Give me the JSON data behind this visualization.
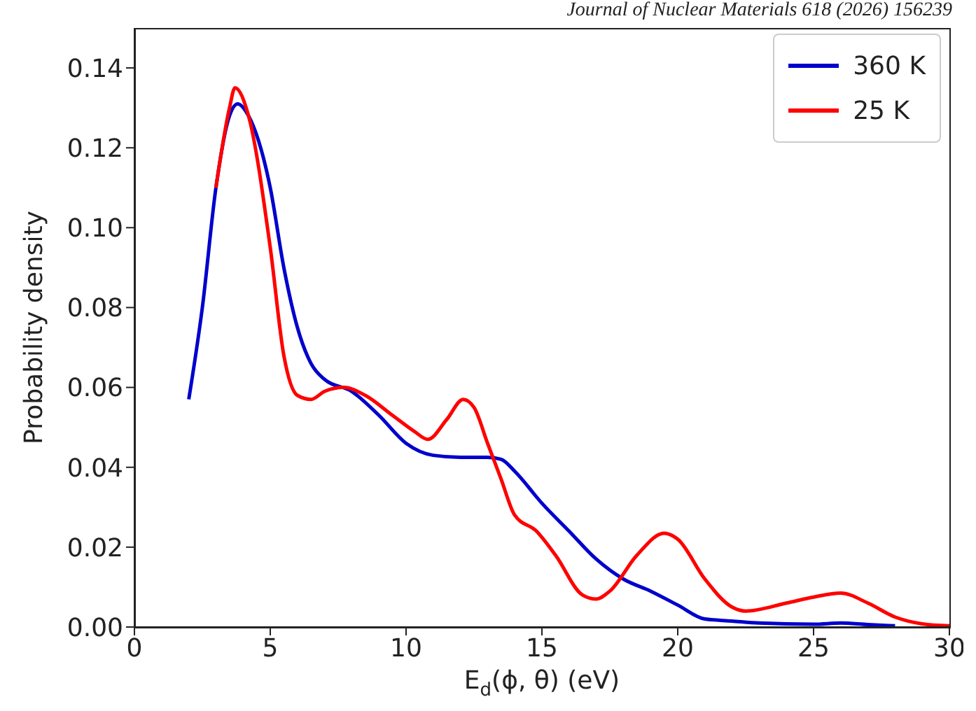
{
  "chart_data": {
    "type": "line",
    "xlabel": "E$_{d}$(ϕ, θ) (eV)",
    "ylabel": "Probability density",
    "annotations": [
      "Journal of Nuclear Materials 618 (2026) 156239"
    ],
    "xlim": [
      0,
      30
    ],
    "xticks": [
      0,
      5,
      10,
      15,
      20,
      25,
      30
    ],
    "ylim": [
      0,
      0.15
    ],
    "yticks": [
      {
        "value": 0,
        "label": "0.00"
      },
      {
        "value": 0.02,
        "label": "0.02"
      },
      {
        "value": 0.04,
        "label": "0.04"
      },
      {
        "value": 0.06,
        "label": "0.06"
      },
      {
        "value": 0.08,
        "label": "0.08"
      },
      {
        "value": 0.1,
        "label": "0.10"
      },
      {
        "value": 0.12,
        "label": "0.12"
      },
      {
        "value": 0.14,
        "label": "0.14"
      }
    ],
    "legend": "top right",
    "grid": false,
    "marker": "none",
    "line_style": "solid",
    "series": [
      {
        "name": "360 K",
        "color": "#0000cc",
        "x": [
          2,
          2.5,
          3,
          3.5,
          3.8,
          4.2,
          5,
          5.5,
          6,
          6.5,
          7,
          8,
          9,
          10,
          11,
          12,
          13,
          13.5,
          14,
          15,
          16,
          17,
          18,
          19,
          20,
          21,
          22,
          23,
          25,
          26,
          27,
          28
        ],
        "values": [
          0.057,
          0.08,
          0.11,
          0.128,
          0.131,
          0.128,
          0.11,
          0.09,
          0.075,
          0.066,
          0.062,
          0.059,
          0.053,
          0.046,
          0.043,
          0.0425,
          0.0425,
          0.042,
          0.039,
          0.031,
          0.024,
          0.017,
          0.012,
          0.009,
          0.0055,
          0.002,
          0.0015,
          0.001,
          0.0007,
          0.001,
          0.0006,
          0.0003
        ]
      },
      {
        "name": "25 K",
        "color": "#ff0000",
        "x": [
          3,
          3.5,
          3.7,
          4.2,
          5,
          5.5,
          6,
          6.5,
          7,
          7.7,
          8.5,
          9.5,
          10.3,
          10.8,
          11.5,
          12.1,
          12.5,
          13,
          13.5,
          14,
          14.8,
          15.5,
          16.5,
          17,
          17.5,
          18.5,
          19.5,
          20,
          21,
          22,
          22.5,
          24,
          25,
          26,
          27,
          28,
          29,
          30
        ],
        "values": [
          0.11,
          0.13,
          0.135,
          0.128,
          0.095,
          0.068,
          0.058,
          0.057,
          0.059,
          0.06,
          0.058,
          0.053,
          0.049,
          0.047,
          0.052,
          0.057,
          0.055,
          0.046,
          0.037,
          0.028,
          0.024,
          0.018,
          0.008,
          0.007,
          0.009,
          0.018,
          0.0235,
          0.022,
          0.012,
          0.005,
          0.004,
          0.006,
          0.0075,
          0.0085,
          0.006,
          0.0025,
          0.0008,
          0.0003
        ]
      }
    ]
  }
}
